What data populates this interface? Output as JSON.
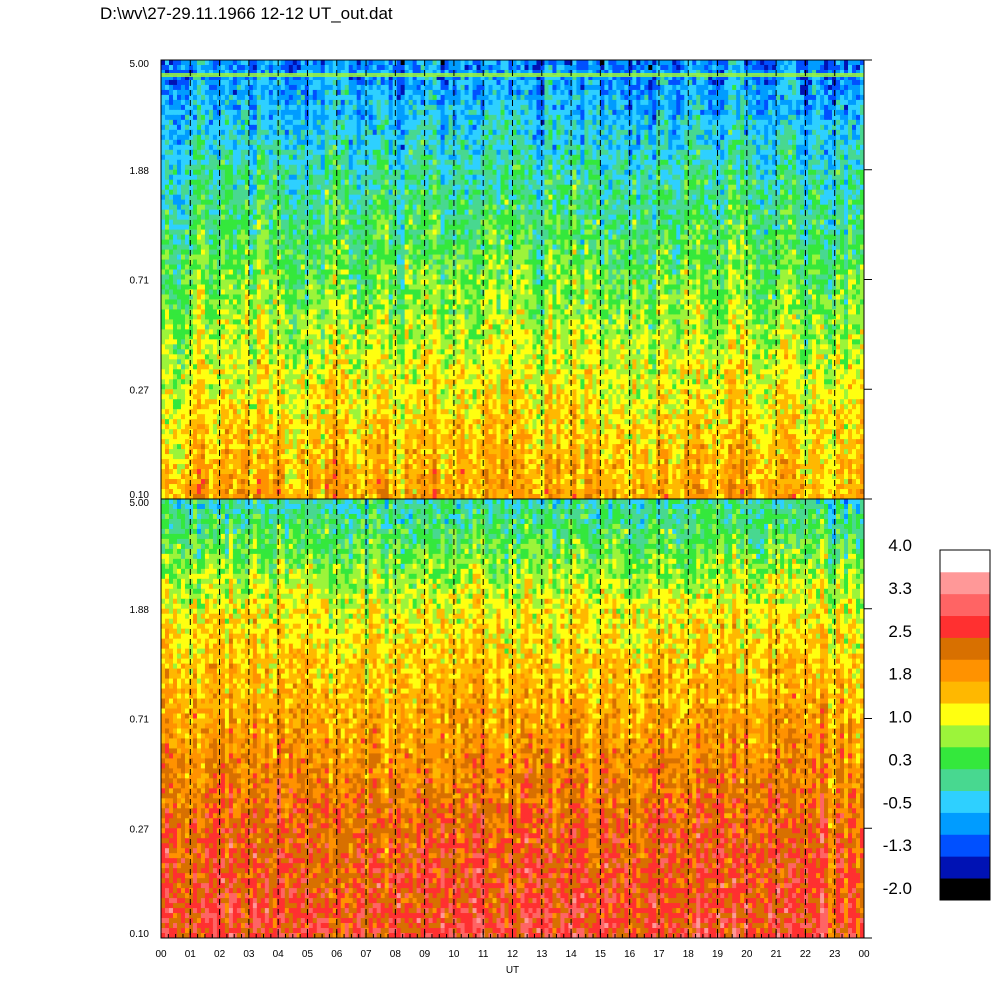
{
  "title": "D:\\wv\\27-29.11.1966  12-12 UT_out.dat",
  "chart_data": {
    "type": "heatmap",
    "xlabel": "UT",
    "x_tick_labels": [
      "00",
      "01",
      "02",
      "03",
      "04",
      "05",
      "06",
      "07",
      "08",
      "09",
      "10",
      "11",
      "12",
      "13",
      "14",
      "15",
      "16",
      "17",
      "18",
      "19",
      "20",
      "21",
      "22",
      "23",
      "00"
    ],
    "x_range": [
      0,
      24
    ],
    "y_scale": "log",
    "panels": [
      {
        "y_tick_labels": [
          "5.00",
          "1.88",
          "0.71",
          "0.27",
          "0.10"
        ],
        "ylim": [
          0.1,
          5.0
        ],
        "level_profile": [
          {
            "y": 0.1,
            "value": 1.8
          },
          {
            "y": 0.27,
            "value": 1.2
          },
          {
            "y": 0.71,
            "value": 0.6
          },
          {
            "y": 1.88,
            "value": 0.0
          },
          {
            "y": 5.0,
            "value": -0.8
          }
        ]
      },
      {
        "y_tick_labels": [
          "5.00",
          "1.88",
          "0.71",
          "0.27",
          "0.10"
        ],
        "ylim": [
          0.1,
          5.0
        ],
        "level_profile": [
          {
            "y": 0.1,
            "value": 2.7
          },
          {
            "y": 0.27,
            "value": 2.4
          },
          {
            "y": 0.71,
            "value": 1.8
          },
          {
            "y": 1.88,
            "value": 1.2
          },
          {
            "y": 5.0,
            "value": 0.0
          }
        ]
      }
    ],
    "colorbar": {
      "labels": [
        "4.0",
        "3.3",
        "2.5",
        "1.8",
        "1.0",
        "0.3",
        "-0.5",
        "-1.3",
        "-2.0"
      ],
      "range": [
        -2.0,
        4.0
      ],
      "colors": [
        "#000000",
        "#0012b4",
        "#0050ff",
        "#009cff",
        "#2ed0ff",
        "#48d890",
        "#34e83c",
        "#9cf43a",
        "#ffff10",
        "#ffb800",
        "#ff9200",
        "#d87000",
        "#ff3030",
        "#ff6464",
        "#ff9898",
        "#ffffff"
      ]
    },
    "grid": "dashed vertical lines at each hour"
  }
}
